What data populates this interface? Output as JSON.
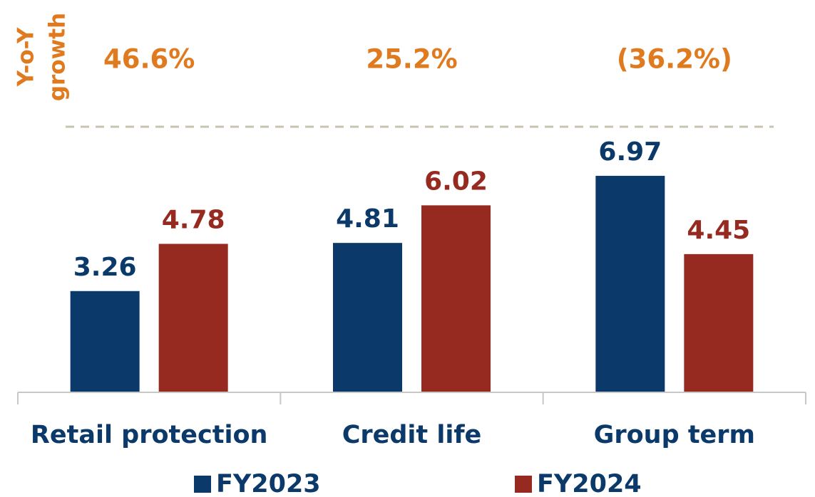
{
  "chart_data": {
    "type": "bar",
    "categories": [
      "Retail protection",
      "Credit life",
      "Group term"
    ],
    "series": [
      {
        "name": "FY2023",
        "color": "#0b3a6a",
        "values": [
          3.26,
          4.81,
          6.97
        ]
      },
      {
        "name": "FY2024",
        "color": "#962a21",
        "values": [
          4.78,
          6.02,
          4.45
        ]
      }
    ],
    "ylim": [
      0,
      8
    ],
    "growth_title": [
      "Y-o-Y",
      "growth"
    ],
    "growth_labels": [
      "46.6%",
      "25.2%",
      "(36.2%)"
    ],
    "growth_color": "#e07a1f",
    "grid": false
  }
}
